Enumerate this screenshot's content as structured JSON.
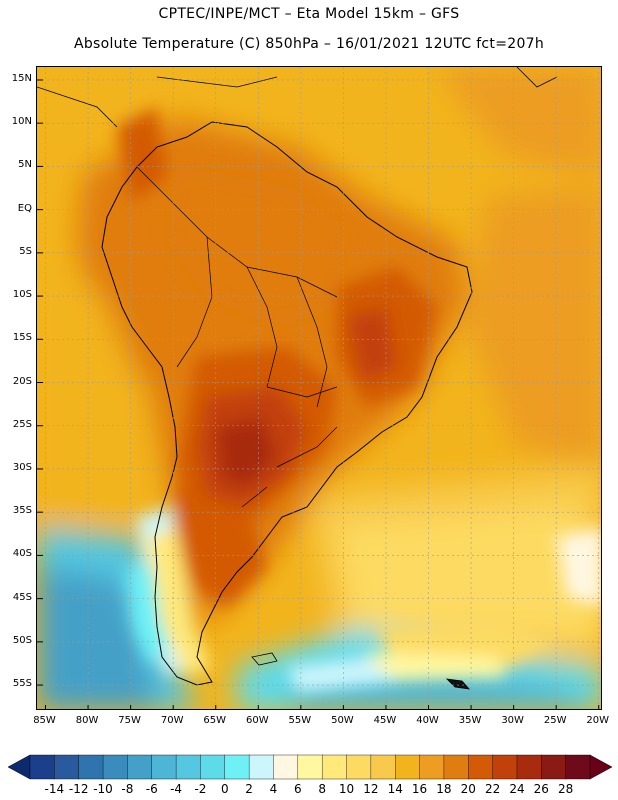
{
  "title": {
    "line1": "CPTEC/INPE/MCT –  Eta Model 15km – GFS",
    "line2": "Absolute Temperature (C) 850hPa – 16/01/2021 12UTC fct=207h"
  },
  "axes": {
    "lat_labels": [
      "15N",
      "10N",
      "5N",
      "EQ",
      "5S",
      "10S",
      "15S",
      "20S",
      "25S",
      "30S",
      "35S",
      "40S",
      "45S",
      "50S",
      "55S"
    ],
    "lat_values": [
      15,
      10,
      5,
      0,
      -5,
      -10,
      -15,
      -20,
      -25,
      -30,
      -35,
      -40,
      -45,
      -50,
      -55
    ],
    "lon_labels": [
      "85W",
      "80W",
      "75W",
      "70W",
      "65W",
      "60W",
      "55W",
      "50W",
      "45W",
      "40W",
      "35W",
      "30W",
      "25W",
      "20W"
    ],
    "lon_values": [
      -85,
      -80,
      -75,
      -70,
      -65,
      -60,
      -55,
      -50,
      -45,
      -40,
      -35,
      -30,
      -25,
      -20
    ],
    "lat_range": [
      -58,
      16.5
    ],
    "lon_range": [
      -86,
      -19.5
    ]
  },
  "colorbar": {
    "labels": [
      "-14",
      "-12",
      "-10",
      "-8",
      "-6",
      "-4",
      "-2",
      "0",
      "2",
      "4",
      "6",
      "8",
      "10",
      "12",
      "14",
      "16",
      "18",
      "20",
      "22",
      "24",
      "26",
      "28"
    ],
    "colors": [
      "#1c3f8c",
      "#2a5a9e",
      "#2f74ae",
      "#3a8cbd",
      "#44a0c8",
      "#4db5d5",
      "#55c7e0",
      "#5ddbe9",
      "#6ef0f5",
      "#ccf5fc",
      "#fff7e2",
      "#fff8a0",
      "#ffe97a",
      "#fddb62",
      "#f8c94a",
      "#f2b41c",
      "#ec9d22",
      "#e07d10",
      "#d35a06",
      "#c24009",
      "#a82b0e",
      "#8a1a14",
      "#6e0a1a"
    ],
    "under_color": "#0e2a6e",
    "over_color": "#6a0018"
  },
  "colors": {
    "frame": "#000000",
    "grid": "#9a9a9a",
    "coast": "#000000"
  }
}
